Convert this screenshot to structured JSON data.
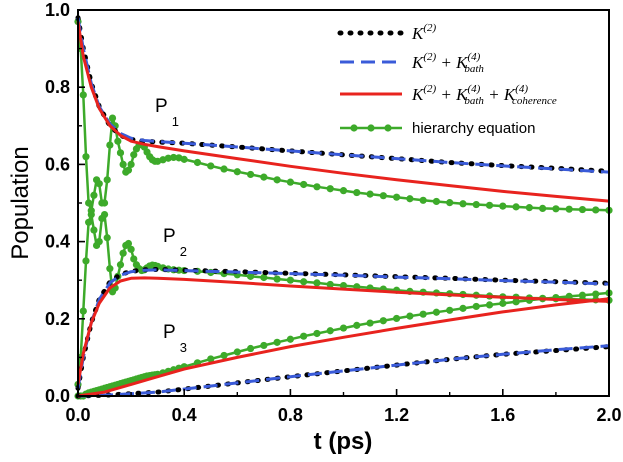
{
  "chart_data": {
    "type": "line",
    "title": "",
    "xlabel": "t (ps)",
    "ylabel": "Population",
    "xlim": [
      0,
      2.0
    ],
    "ylim": [
      0,
      1.0
    ],
    "xticks": [
      "0.0",
      "0.4",
      "0.8",
      "1.2",
      "1.6",
      "2.0"
    ],
    "yticks": [
      "0.0",
      "0.2",
      "0.4",
      "0.6",
      "0.8",
      "1.0"
    ],
    "annotations": [
      {
        "label": "P",
        "sub": "1",
        "x": 0.31,
        "y": 0.72
      },
      {
        "label": "P",
        "sub": "2",
        "x": 0.33,
        "y": 0.4
      },
      {
        "label": "P",
        "sub": "3",
        "x": 0.33,
        "y": 0.1
      }
    ],
    "legend": [
      {
        "id": "k2",
        "text": "K",
        "sup1": "(2)"
      },
      {
        "id": "k2bath",
        "text": "K",
        "sup1": "(2)",
        "mid": " + K",
        "sup2": "(4)",
        "sub2": "bath"
      },
      {
        "id": "k2bathcoh",
        "text": "K",
        "sup1": "(2)",
        "mid": " + K",
        "sup2": "(4)",
        "sub2": "bath",
        "mid2": " + K",
        "sup3": "(4)",
        "sub3": "coherence"
      },
      {
        "id": "hier",
        "text": "hierarchy equation"
      }
    ],
    "series": [
      {
        "name": "K(2)",
        "population": "P1",
        "style": "dotted",
        "color": "#000000",
        "x": [
          0,
          0.02,
          0.05,
          0.08,
          0.12,
          0.16,
          0.2,
          0.25,
          0.3,
          0.4,
          0.6,
          0.8,
          1.0,
          1.2,
          1.4,
          1.6,
          1.8,
          2.0
        ],
        "y": [
          0.98,
          0.9,
          0.81,
          0.75,
          0.7,
          0.675,
          0.665,
          0.66,
          0.658,
          0.655,
          0.645,
          0.635,
          0.625,
          0.615,
          0.605,
          0.597,
          0.59,
          0.582
        ]
      },
      {
        "name": "K(2)",
        "population": "P2",
        "style": "dotted",
        "color": "#000000",
        "x": [
          0,
          0.02,
          0.05,
          0.08,
          0.12,
          0.16,
          0.2,
          0.25,
          0.3,
          0.4,
          0.6,
          0.8,
          1.0,
          1.2,
          1.4,
          1.6,
          1.8,
          2.0
        ],
        "y": [
          0.02,
          0.1,
          0.19,
          0.25,
          0.295,
          0.315,
          0.323,
          0.327,
          0.328,
          0.326,
          0.322,
          0.318,
          0.314,
          0.309,
          0.305,
          0.3,
          0.296,
          0.292
        ]
      },
      {
        "name": "K(2)",
        "population": "P3",
        "style": "dotted",
        "color": "#000000",
        "x": [
          0,
          0.1,
          0.2,
          0.3,
          0.4,
          0.6,
          0.8,
          1.0,
          1.2,
          1.4,
          1.6,
          1.8,
          2.0
        ],
        "y": [
          0,
          0.002,
          0.006,
          0.01,
          0.018,
          0.034,
          0.05,
          0.065,
          0.08,
          0.095,
          0.108,
          0.118,
          0.128
        ]
      },
      {
        "name": "K(2)+K(4)bath",
        "population": "P1",
        "style": "dashed",
        "color": "#3a5bd9",
        "x": [
          0,
          0.02,
          0.05,
          0.08,
          0.12,
          0.16,
          0.2,
          0.25,
          0.3,
          0.4,
          0.6,
          0.8,
          1.0,
          1.2,
          1.4,
          1.6,
          1.8,
          2.0
        ],
        "y": [
          0.98,
          0.9,
          0.81,
          0.75,
          0.705,
          0.68,
          0.668,
          0.662,
          0.659,
          0.655,
          0.645,
          0.635,
          0.625,
          0.615,
          0.605,
          0.596,
          0.588,
          0.58
        ]
      },
      {
        "name": "K(2)+K(4)bath",
        "population": "P2",
        "style": "dashed",
        "color": "#3a5bd9",
        "x": [
          0,
          0.02,
          0.05,
          0.08,
          0.12,
          0.16,
          0.2,
          0.25,
          0.3,
          0.4,
          0.6,
          0.8,
          1.0,
          1.2,
          1.4,
          1.6,
          1.8,
          2.0
        ],
        "y": [
          0.02,
          0.1,
          0.19,
          0.25,
          0.293,
          0.313,
          0.322,
          0.326,
          0.327,
          0.325,
          0.321,
          0.317,
          0.313,
          0.308,
          0.304,
          0.299,
          0.295,
          0.29
        ]
      },
      {
        "name": "K(2)+K(4)bath",
        "population": "P3",
        "style": "dashed",
        "color": "#3a5bd9",
        "x": [
          0,
          0.1,
          0.2,
          0.3,
          0.4,
          0.6,
          0.8,
          1.0,
          1.2,
          1.4,
          1.6,
          1.8,
          2.0
        ],
        "y": [
          0,
          0.002,
          0.006,
          0.01,
          0.018,
          0.034,
          0.05,
          0.065,
          0.08,
          0.095,
          0.108,
          0.12,
          0.13
        ]
      },
      {
        "name": "K(2)+K(4)bath+K(4)coherence",
        "population": "P1",
        "style": "solid",
        "color": "#e8231e",
        "x": [
          0,
          0.02,
          0.05,
          0.08,
          0.12,
          0.16,
          0.2,
          0.25,
          0.3,
          0.4,
          0.6,
          0.8,
          1.0,
          1.2,
          1.4,
          1.6,
          1.8,
          2.0
        ],
        "y": [
          0.97,
          0.88,
          0.8,
          0.745,
          0.7,
          0.675,
          0.66,
          0.652,
          0.646,
          0.635,
          0.615,
          0.595,
          0.577,
          0.56,
          0.545,
          0.53,
          0.517,
          0.505
        ]
      },
      {
        "name": "K(2)+K(4)bath+K(4)coherence",
        "population": "P2",
        "style": "solid",
        "color": "#e8231e",
        "x": [
          0,
          0.02,
          0.05,
          0.08,
          0.12,
          0.16,
          0.2,
          0.25,
          0.3,
          0.4,
          0.6,
          0.8,
          1.0,
          1.2,
          1.4,
          1.6,
          1.8,
          2.0
        ],
        "y": [
          0.03,
          0.11,
          0.19,
          0.24,
          0.28,
          0.298,
          0.305,
          0.306,
          0.305,
          0.302,
          0.294,
          0.285,
          0.277,
          0.269,
          0.262,
          0.256,
          0.25,
          0.245
        ]
      },
      {
        "name": "K(2)+K(4)bath+K(4)coherence",
        "population": "P3",
        "style": "solid",
        "color": "#e8231e",
        "x": [
          0,
          0.1,
          0.2,
          0.3,
          0.4,
          0.6,
          0.8,
          1.0,
          1.2,
          1.4,
          1.6,
          1.8,
          2.0
        ],
        "y": [
          0,
          0.01,
          0.03,
          0.05,
          0.07,
          0.1,
          0.128,
          0.152,
          0.175,
          0.197,
          0.218,
          0.236,
          0.252
        ]
      },
      {
        "name": "hierarchy equation",
        "population": "P1",
        "style": "line-dots",
        "color": "#3daa2a",
        "x": [
          0,
          0.01,
          0.02,
          0.03,
          0.04,
          0.05,
          0.06,
          0.07,
          0.08,
          0.09,
          0.1,
          0.11,
          0.12,
          0.13,
          0.14,
          0.15,
          0.16,
          0.17,
          0.18,
          0.19,
          0.2,
          0.21,
          0.22,
          0.23,
          0.24,
          0.25,
          0.26,
          0.27,
          0.28,
          0.29,
          0.3,
          0.32,
          0.34,
          0.36,
          0.38,
          0.4,
          0.45,
          0.5,
          0.55,
          0.6,
          0.65,
          0.7,
          0.75,
          0.8,
          0.85,
          0.9,
          0.95,
          1.0,
          1.05,
          1.1,
          1.15,
          1.2,
          1.25,
          1.3,
          1.35,
          1.4,
          1.45,
          1.5,
          1.55,
          1.6,
          1.65,
          1.7,
          1.75,
          1.8,
          1.85,
          1.9,
          1.95,
          2.0
        ],
        "y": [
          0.97,
          0.9,
          0.78,
          0.62,
          0.5,
          0.48,
          0.52,
          0.56,
          0.55,
          0.5,
          0.5,
          0.56,
          0.65,
          0.72,
          0.7,
          0.66,
          0.63,
          0.6,
          0.58,
          0.585,
          0.6,
          0.625,
          0.64,
          0.65,
          0.652,
          0.645,
          0.632,
          0.62,
          0.612,
          0.608,
          0.608,
          0.612,
          0.616,
          0.618,
          0.617,
          0.613,
          0.605,
          0.596,
          0.588,
          0.581,
          0.574,
          0.567,
          0.56,
          0.554,
          0.548,
          0.542,
          0.537,
          0.532,
          0.527,
          0.523,
          0.519,
          0.515,
          0.511,
          0.507,
          0.504,
          0.501,
          0.498,
          0.496,
          0.494,
          0.492,
          0.49,
          0.488,
          0.486,
          0.485,
          0.484,
          0.483,
          0.482,
          0.481
        ]
      },
      {
        "name": "hierarchy equation",
        "population": "P2",
        "style": "line-dots",
        "color": "#3daa2a",
        "x": [
          0,
          0.01,
          0.02,
          0.03,
          0.04,
          0.05,
          0.06,
          0.07,
          0.08,
          0.09,
          0.1,
          0.11,
          0.12,
          0.13,
          0.14,
          0.15,
          0.16,
          0.17,
          0.18,
          0.19,
          0.2,
          0.21,
          0.22,
          0.23,
          0.24,
          0.25,
          0.26,
          0.27,
          0.28,
          0.29,
          0.3,
          0.32,
          0.34,
          0.36,
          0.38,
          0.4,
          0.45,
          0.5,
          0.55,
          0.6,
          0.65,
          0.7,
          0.75,
          0.8,
          0.85,
          0.9,
          0.95,
          1.0,
          1.05,
          1.1,
          1.15,
          1.2,
          1.25,
          1.3,
          1.35,
          1.4,
          1.45,
          1.5,
          1.55,
          1.6,
          1.65,
          1.7,
          1.75,
          1.8,
          1.85,
          1.9,
          1.95,
          2.0
        ],
        "y": [
          0.03,
          0.1,
          0.22,
          0.35,
          0.45,
          0.47,
          0.43,
          0.39,
          0.4,
          0.46,
          0.47,
          0.41,
          0.33,
          0.27,
          0.28,
          0.31,
          0.34,
          0.37,
          0.39,
          0.395,
          0.38,
          0.355,
          0.34,
          0.33,
          0.325,
          0.327,
          0.332,
          0.337,
          0.339,
          0.338,
          0.336,
          0.332,
          0.329,
          0.327,
          0.326,
          0.325,
          0.323,
          0.32,
          0.317,
          0.314,
          0.31,
          0.307,
          0.303,
          0.3,
          0.296,
          0.293,
          0.289,
          0.286,
          0.283,
          0.28,
          0.277,
          0.274,
          0.271,
          0.269,
          0.267,
          0.265,
          0.263,
          0.261,
          0.259,
          0.257,
          0.256,
          0.254,
          0.253,
          0.252,
          0.251,
          0.25,
          0.249,
          0.248
        ]
      },
      {
        "name": "hierarchy equation",
        "population": "P3",
        "style": "line-dots",
        "color": "#3daa2a",
        "x": [
          0,
          0.01,
          0.02,
          0.03,
          0.04,
          0.05,
          0.06,
          0.07,
          0.08,
          0.09,
          0.1,
          0.11,
          0.12,
          0.13,
          0.14,
          0.15,
          0.16,
          0.17,
          0.18,
          0.19,
          0.2,
          0.21,
          0.22,
          0.23,
          0.24,
          0.25,
          0.26,
          0.27,
          0.28,
          0.29,
          0.3,
          0.32,
          0.34,
          0.36,
          0.38,
          0.4,
          0.45,
          0.5,
          0.55,
          0.6,
          0.65,
          0.7,
          0.75,
          0.8,
          0.85,
          0.9,
          0.95,
          1.0,
          1.05,
          1.1,
          1.15,
          1.2,
          1.25,
          1.3,
          1.35,
          1.4,
          1.45,
          1.5,
          1.55,
          1.6,
          1.65,
          1.7,
          1.75,
          1.8,
          1.85,
          1.9,
          1.95,
          2.0
        ],
        "y": [
          0,
          0.0,
          0.0,
          0.005,
          0.008,
          0.01,
          0.012,
          0.014,
          0.016,
          0.018,
          0.02,
          0.022,
          0.024,
          0.026,
          0.028,
          0.03,
          0.032,
          0.034,
          0.036,
          0.038,
          0.04,
          0.042,
          0.044,
          0.046,
          0.048,
          0.05,
          0.052,
          0.053,
          0.054,
          0.055,
          0.056,
          0.06,
          0.064,
          0.068,
          0.072,
          0.076,
          0.086,
          0.096,
          0.105,
          0.114,
          0.123,
          0.131,
          0.139,
          0.147,
          0.155,
          0.162,
          0.169,
          0.176,
          0.183,
          0.189,
          0.195,
          0.201,
          0.207,
          0.212,
          0.217,
          0.222,
          0.227,
          0.232,
          0.236,
          0.24,
          0.244,
          0.248,
          0.252,
          0.255,
          0.258,
          0.261,
          0.264,
          0.267
        ]
      }
    ]
  }
}
